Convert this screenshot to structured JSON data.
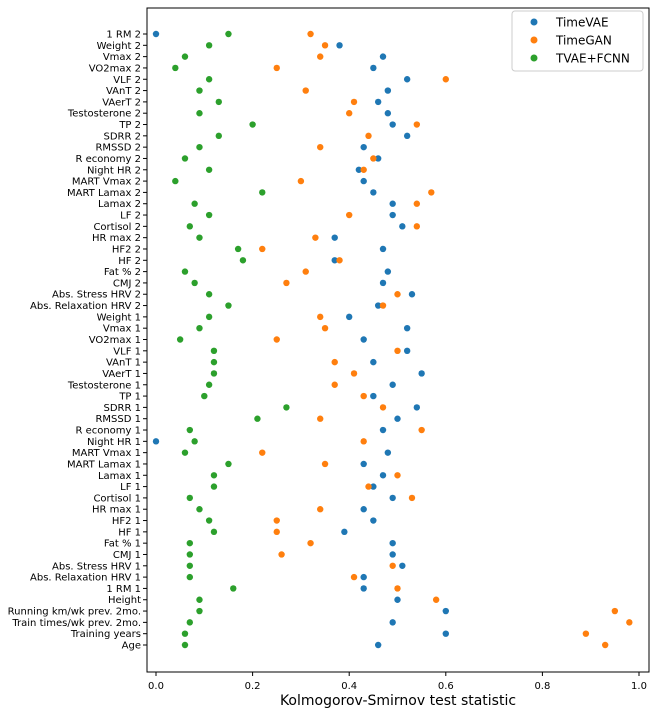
{
  "chart_data": {
    "type": "scatter",
    "title": "",
    "xlabel": "Kolmogorov-Smirnov test statistic",
    "ylabel": "",
    "xlim": [
      0.0,
      1.0
    ],
    "xticks": [
      "0.0",
      "0.2",
      "0.4",
      "0.6",
      "0.8",
      "1.0"
    ],
    "legend_position": "top-right",
    "categories": [
      "1 RM 2",
      "Weight 2",
      "Vmax 2",
      "VO2max 2",
      "VLF 2",
      "VAnT 2",
      "VAerT 2",
      "Testosterone 2",
      "TP 2",
      "SDRR 2",
      "RMSSD 2",
      "R economy 2",
      "Night HR 2",
      "MART Vmax 2",
      "MART Lamax 2",
      "Lamax 2",
      "LF 2",
      "Cortisol 2",
      "HR max 2",
      "HF2 2",
      "HF 2",
      "Fat % 2",
      "CMJ 2",
      "Abs. Stress HRV 2",
      "Abs. Relaxation HRV 2",
      "Weight 1",
      "Vmax 1",
      "VO2max 1",
      "VLF 1",
      "VAnT 1",
      "VAerT 1",
      "Testosterone 1",
      "TP 1",
      "SDRR 1",
      "RMSSD 1",
      "R economy 1",
      "Night HR 1",
      "MART Vmax 1",
      "MART Lamax 1",
      "Lamax 1",
      "LF 1",
      "Cortisol 1",
      "HR max 1",
      "HF2 1",
      "HF 1",
      "Fat % 1",
      "CMJ 1",
      "Abs. Stress HRV 1",
      "Abs. Relaxation HRV 1",
      "1 RM 1",
      "Height",
      "Running km/wk prev. 2mo.",
      "Train times/wk prev. 2mo.",
      "Training years",
      "Age"
    ],
    "series": [
      {
        "name": "TimeVAE",
        "color": "#1f77b4",
        "values": [
          0.0,
          0.38,
          0.47,
          0.45,
          0.52,
          0.48,
          0.46,
          0.48,
          0.49,
          0.52,
          0.43,
          0.46,
          0.42,
          0.43,
          0.45,
          0.49,
          0.49,
          0.51,
          0.37,
          0.47,
          0.37,
          0.48,
          0.47,
          0.53,
          0.46,
          0.4,
          0.52,
          0.43,
          0.52,
          0.45,
          0.55,
          0.49,
          0.45,
          0.54,
          0.5,
          0.47,
          0.0,
          0.48,
          0.43,
          0.47,
          0.45,
          0.49,
          0.43,
          0.45,
          0.39,
          0.49,
          0.49,
          0.51,
          0.43,
          0.43,
          0.5,
          0.6,
          0.49,
          0.6,
          0.46
        ]
      },
      {
        "name": "TimeGAN",
        "color": "#ff7f0e",
        "values": [
          0.32,
          0.35,
          0.34,
          0.25,
          0.6,
          0.31,
          0.41,
          0.4,
          0.54,
          0.44,
          0.34,
          0.45,
          0.43,
          0.3,
          0.57,
          0.54,
          0.4,
          0.54,
          0.33,
          0.22,
          0.38,
          0.31,
          0.27,
          0.5,
          0.47,
          0.34,
          0.35,
          0.25,
          0.5,
          0.37,
          0.41,
          0.37,
          0.43,
          0.47,
          0.34,
          0.55,
          0.43,
          0.22,
          0.35,
          0.5,
          0.44,
          0.53,
          0.34,
          0.25,
          0.25,
          0.32,
          0.26,
          0.49,
          0.41,
          0.5,
          0.58,
          0.95,
          0.98,
          0.89,
          0.93
        ]
      },
      {
        "name": "TVAE+FCNN",
        "color": "#2ca02c",
        "values": [
          0.15,
          0.11,
          0.06,
          0.04,
          0.11,
          0.09,
          0.13,
          0.09,
          0.2,
          0.13,
          0.09,
          0.06,
          0.11,
          0.04,
          0.22,
          0.08,
          0.11,
          0.07,
          0.09,
          0.17,
          0.18,
          0.06,
          0.08,
          0.11,
          0.15,
          0.11,
          0.09,
          0.05,
          0.12,
          0.12,
          0.12,
          0.11,
          0.1,
          0.27,
          0.21,
          0.07,
          0.08,
          0.06,
          0.15,
          0.12,
          0.12,
          0.07,
          0.09,
          0.11,
          0.12,
          0.07,
          0.07,
          0.07,
          0.07,
          0.16,
          0.09,
          0.09,
          0.07,
          0.06,
          0.06
        ]
      }
    ]
  }
}
